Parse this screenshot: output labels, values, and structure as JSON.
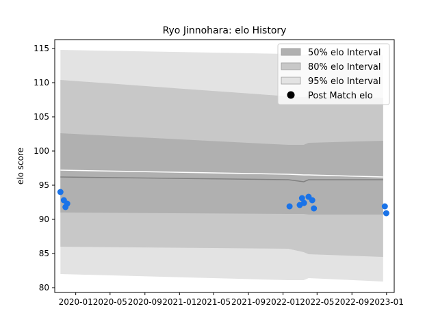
{
  "chart_data": {
    "type": "line",
    "title": "Ryo Jinnohara: elo History",
    "xlabel": "",
    "ylabel": "elo score",
    "xlim": [
      "2019-10-19",
      "2023-01-28"
    ],
    "ylim": [
      79.3,
      116.3
    ],
    "x_ticks": [
      "2020-01",
      "2020-05",
      "2020-09",
      "2021-01",
      "2021-05",
      "2021-09",
      "2022-01",
      "2022-05",
      "2022-09",
      "2023-01"
    ],
    "y_ticks": [
      80,
      85,
      90,
      95,
      100,
      105,
      110,
      115
    ],
    "grid": false,
    "legend_position": "top-right",
    "colors": {
      "band_50": "#b0b0b0",
      "band_80": "#c8c8c8",
      "band_95": "#e3e3e3",
      "mean_line": "#808080",
      "upper_line": "#ffffff",
      "points": "#1a73e8"
    },
    "dates": [
      "2019-11-08",
      "2022-01-20",
      "2022-03-15",
      "2022-04-01",
      "2022-12-20"
    ],
    "bands": {
      "upper95": [
        114.8,
        114.2,
        114.1,
        114.1,
        114.0
      ],
      "lower95": [
        82.0,
        81.1,
        81.1,
        81.4,
        80.9
      ],
      "upper80": [
        110.4,
        108.0,
        107.9,
        108.0,
        107.8
      ],
      "lower80": [
        86.0,
        85.7,
        85.2,
        84.9,
        84.5
      ],
      "upper50": [
        102.6,
        100.9,
        100.9,
        101.2,
        101.5
      ],
      "lower50": [
        91.0,
        90.8,
        90.8,
        90.7,
        90.7
      ],
      "mean": [
        96.2,
        95.8,
        95.5,
        95.8,
        95.8
      ],
      "white_line": [
        97.2,
        96.6,
        96.5,
        96.5,
        96.2
      ]
    },
    "series": [
      {
        "name": "Post Match elo",
        "type": "scatter",
        "x": [
          "2019-11-08",
          "2019-11-20",
          "2019-11-26",
          "2019-12-02",
          "2022-01-24",
          "2022-03-01",
          "2022-03-09",
          "2022-03-16",
          "2022-04-01",
          "2022-04-14",
          "2022-04-20",
          "2022-12-26",
          "2022-12-31"
        ],
        "y": [
          94.0,
          92.8,
          91.8,
          92.3,
          91.9,
          92.1,
          93.1,
          92.4,
          93.3,
          92.8,
          91.6,
          91.9,
          90.9
        ]
      }
    ],
    "legend": [
      {
        "label": "50% elo Interval",
        "kind": "band50"
      },
      {
        "label": "80% elo Interval",
        "kind": "band80"
      },
      {
        "label": "95% elo Interval",
        "kind": "band95"
      },
      {
        "label": "Post Match elo",
        "kind": "point"
      }
    ]
  }
}
